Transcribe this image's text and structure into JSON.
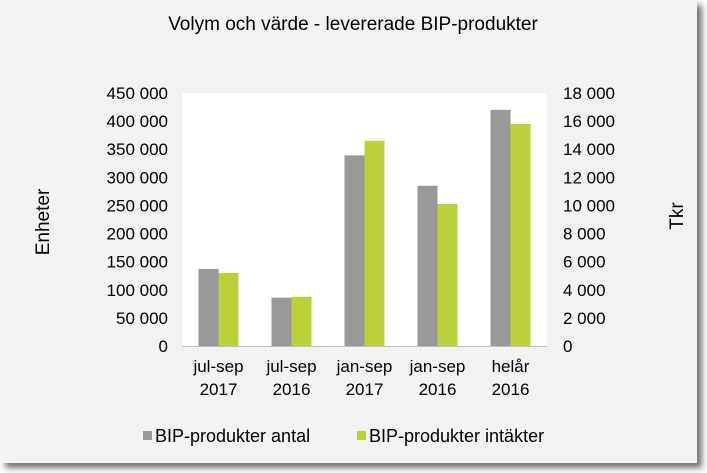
{
  "chart_data": {
    "type": "bar",
    "title": "Volym och värde - levererade BIP-produkter",
    "categories": [
      [
        "jul-sep",
        "2017"
      ],
      [
        "jul-sep",
        "2016"
      ],
      [
        "jan-sep",
        "2017"
      ],
      [
        "jan-sep",
        "2016"
      ],
      [
        "helår",
        "2016"
      ]
    ],
    "ylabel_left": "Enheter",
    "ylabel_right": "Tkr",
    "ylim_left": [
      0,
      450000
    ],
    "ylim_right": [
      0,
      18000
    ],
    "yticks_left": [
      "0",
      "50 000",
      "100 000",
      "150 000",
      "200 000",
      "250 000",
      "300 000",
      "350 000",
      "400 000",
      "450 000"
    ],
    "yticks_right": [
      "0",
      "2 000",
      "4 000",
      "6 000",
      "8 000",
      "10 000",
      "12 000",
      "14 000",
      "16 000",
      "18 000"
    ],
    "grid": false,
    "legend_position": "bottom",
    "series": [
      {
        "name": "BIP-produkter antal",
        "axis": "left",
        "color": "#999999",
        "values": [
          137000,
          86000,
          339000,
          285000,
          420000
        ]
      },
      {
        "name": "BIP-produkter intäkter",
        "axis": "right",
        "color": "#bcd03a",
        "values": [
          5200,
          3500,
          14600,
          10100,
          15800
        ]
      }
    ]
  }
}
